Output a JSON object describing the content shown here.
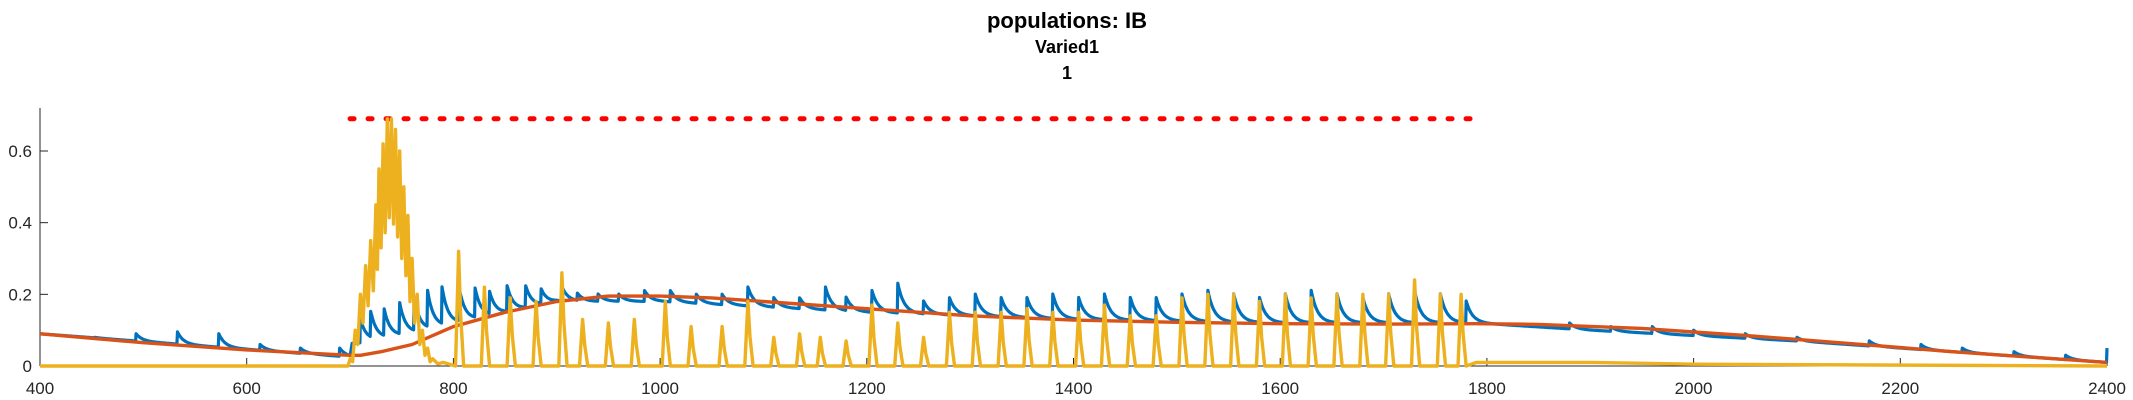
{
  "chart_data": {
    "type": "line",
    "title": "populations: IB",
    "subtitle_lines": [
      "Varied1",
      "1"
    ],
    "xlabel": "",
    "ylabel": "",
    "xlim": [
      400,
      2400
    ],
    "ylim": [
      0,
      0.72
    ],
    "x_ticks": [
      400,
      600,
      800,
      1000,
      1200,
      1400,
      1600,
      1800,
      2000,
      2200,
      2400
    ],
    "x_tick_labels": [
      "400",
      "600",
      "800",
      "1000",
      "1200",
      "1400",
      "1600",
      "1800",
      "2000",
      "2200",
      "2400"
    ],
    "y_ticks": [
      0,
      0.2,
      0.4,
      0.6
    ],
    "y_tick_labels": [
      "0",
      "0.2",
      "0.4",
      "0.6"
    ],
    "grid": false,
    "colors": {
      "series1": "#0072BD",
      "series2": "#D95319",
      "series3": "#EDB120",
      "marker_line": "#FF0000"
    },
    "stimulus_marker": {
      "x_start": 700,
      "x_end": 1790,
      "y": 0.69,
      "style": "dotted"
    },
    "series": [
      {
        "color_key": "series1",
        "baseline": [
          [
            400,
            0.09
          ],
          [
            700,
            0.025
          ],
          [
            702,
            0.06
          ],
          [
            760,
            0.09
          ],
          [
            900,
            0.18
          ],
          [
            1000,
            0.18
          ],
          [
            1200,
            0.15
          ],
          [
            1400,
            0.13
          ],
          [
            1600,
            0.12
          ],
          [
            1790,
            0.12
          ],
          [
            1900,
            0.1
          ],
          [
            2100,
            0.07
          ],
          [
            2300,
            0.03
          ],
          [
            2400,
            0.01
          ]
        ],
        "spikes": [
          [
            453,
            0.08
          ],
          [
            493,
            0.09
          ],
          [
            533,
            0.095
          ],
          [
            573,
            0.09
          ],
          [
            613,
            0.06
          ],
          [
            652,
            0.05
          ],
          [
            690,
            0.05
          ],
          [
            710,
            0.13
          ],
          [
            720,
            0.14
          ],
          [
            733,
            0.15
          ],
          [
            748,
            0.17
          ],
          [
            762,
            0.18
          ],
          [
            775,
            0.2
          ],
          [
            789,
            0.21
          ],
          [
            805,
            0.22
          ],
          [
            821,
            0.21
          ],
          [
            835,
            0.2
          ],
          [
            852,
            0.22
          ],
          [
            870,
            0.22
          ],
          [
            885,
            0.21
          ],
          [
            905,
            0.22
          ],
          [
            920,
            0.2
          ],
          [
            940,
            0.2
          ],
          [
            960,
            0.2
          ],
          [
            985,
            0.21
          ],
          [
            1010,
            0.21
          ],
          [
            1035,
            0.2
          ],
          [
            1060,
            0.2
          ],
          [
            1085,
            0.22
          ],
          [
            1110,
            0.19
          ],
          [
            1135,
            0.19
          ],
          [
            1160,
            0.22
          ],
          [
            1180,
            0.19
          ],
          [
            1205,
            0.21
          ],
          [
            1230,
            0.23
          ],
          [
            1255,
            0.18
          ],
          [
            1280,
            0.19
          ],
          [
            1305,
            0.2
          ],
          [
            1330,
            0.19
          ],
          [
            1355,
            0.19
          ],
          [
            1380,
            0.2
          ],
          [
            1405,
            0.19
          ],
          [
            1430,
            0.2
          ],
          [
            1455,
            0.19
          ],
          [
            1480,
            0.19
          ],
          [
            1505,
            0.2
          ],
          [
            1530,
            0.21
          ],
          [
            1555,
            0.2
          ],
          [
            1580,
            0.19
          ],
          [
            1605,
            0.2
          ],
          [
            1630,
            0.21
          ],
          [
            1655,
            0.2
          ],
          [
            1680,
            0.19
          ],
          [
            1705,
            0.2
          ],
          [
            1730,
            0.21
          ],
          [
            1755,
            0.2
          ],
          [
            1780,
            0.18
          ],
          [
            1880,
            0.12
          ],
          [
            1920,
            0.11
          ],
          [
            1960,
            0.11
          ],
          [
            2000,
            0.1
          ],
          [
            2050,
            0.09
          ],
          [
            2100,
            0.08
          ],
          [
            2170,
            0.07
          ],
          [
            2220,
            0.06
          ],
          [
            2260,
            0.05
          ],
          [
            2310,
            0.04
          ],
          [
            2360,
            0.03
          ],
          [
            2400,
            0.05
          ]
        ]
      },
      {
        "color_key": "series2",
        "points": [
          [
            400,
            0.09
          ],
          [
            500,
            0.065
          ],
          [
            600,
            0.045
          ],
          [
            700,
            0.03
          ],
          [
            710,
            0.03
          ],
          [
            730,
            0.04
          ],
          [
            760,
            0.06
          ],
          [
            800,
            0.11
          ],
          [
            850,
            0.15
          ],
          [
            900,
            0.18
          ],
          [
            950,
            0.195
          ],
          [
            1000,
            0.195
          ],
          [
            1050,
            0.19
          ],
          [
            1100,
            0.18
          ],
          [
            1200,
            0.16
          ],
          [
            1300,
            0.14
          ],
          [
            1400,
            0.128
          ],
          [
            1500,
            0.122
          ],
          [
            1600,
            0.118
          ],
          [
            1700,
            0.117
          ],
          [
            1790,
            0.118
          ],
          [
            1850,
            0.116
          ],
          [
            1950,
            0.105
          ],
          [
            2050,
            0.085
          ],
          [
            2150,
            0.063
          ],
          [
            2250,
            0.04
          ],
          [
            2350,
            0.02
          ],
          [
            2400,
            0.01
          ]
        ]
      },
      {
        "color_key": "series3",
        "baseline": [
          [
            400,
            0.0
          ],
          [
            700,
            0.0
          ],
          [
            702,
            0.0
          ],
          [
            2400,
            0.0
          ]
        ],
        "burst": [
          [
            700,
            0.02
          ],
          [
            705,
            0.1
          ],
          [
            710,
            0.2
          ],
          [
            715,
            0.28
          ],
          [
            720,
            0.35
          ],
          [
            725,
            0.45
          ],
          [
            728,
            0.55
          ],
          [
            732,
            0.62
          ],
          [
            736,
            0.69
          ],
          [
            740,
            0.69
          ],
          [
            744,
            0.66
          ],
          [
            748,
            0.6
          ],
          [
            752,
            0.5
          ],
          [
            756,
            0.42
          ],
          [
            760,
            0.3
          ],
          [
            765,
            0.2
          ],
          [
            770,
            0.1
          ],
          [
            775,
            0.05
          ],
          [
            780,
            0.02
          ],
          [
            790,
            0.01
          ]
        ],
        "spikes": [
          [
            805,
            0.32
          ],
          [
            830,
            0.22
          ],
          [
            855,
            0.19
          ],
          [
            880,
            0.18
          ],
          [
            905,
            0.26
          ],
          [
            925,
            0.13
          ],
          [
            950,
            0.12
          ],
          [
            975,
            0.13
          ],
          [
            1005,
            0.18
          ],
          [
            1030,
            0.11
          ],
          [
            1060,
            0.11
          ],
          [
            1085,
            0.18
          ],
          [
            1110,
            0.08
          ],
          [
            1135,
            0.09
          ],
          [
            1155,
            0.08
          ],
          [
            1180,
            0.07
          ],
          [
            1205,
            0.17
          ],
          [
            1230,
            0.12
          ],
          [
            1255,
            0.08
          ],
          [
            1280,
            0.15
          ],
          [
            1305,
            0.15
          ],
          [
            1330,
            0.15
          ],
          [
            1355,
            0.16
          ],
          [
            1380,
            0.15
          ],
          [
            1405,
            0.15
          ],
          [
            1430,
            0.17
          ],
          [
            1455,
            0.14
          ],
          [
            1480,
            0.14
          ],
          [
            1505,
            0.19
          ],
          [
            1530,
            0.2
          ],
          [
            1555,
            0.2
          ],
          [
            1580,
            0.18
          ],
          [
            1605,
            0.2
          ],
          [
            1630,
            0.19
          ],
          [
            1655,
            0.2
          ],
          [
            1680,
            0.2
          ],
          [
            1705,
            0.2
          ],
          [
            1730,
            0.24
          ],
          [
            1755,
            0.2
          ],
          [
            1775,
            0.2
          ]
        ],
        "tail": [
          [
            1790,
            0.01
          ],
          [
            1900,
            0.01
          ],
          [
            2000,
            0.005
          ],
          [
            2400,
            0.0
          ]
        ]
      }
    ]
  }
}
